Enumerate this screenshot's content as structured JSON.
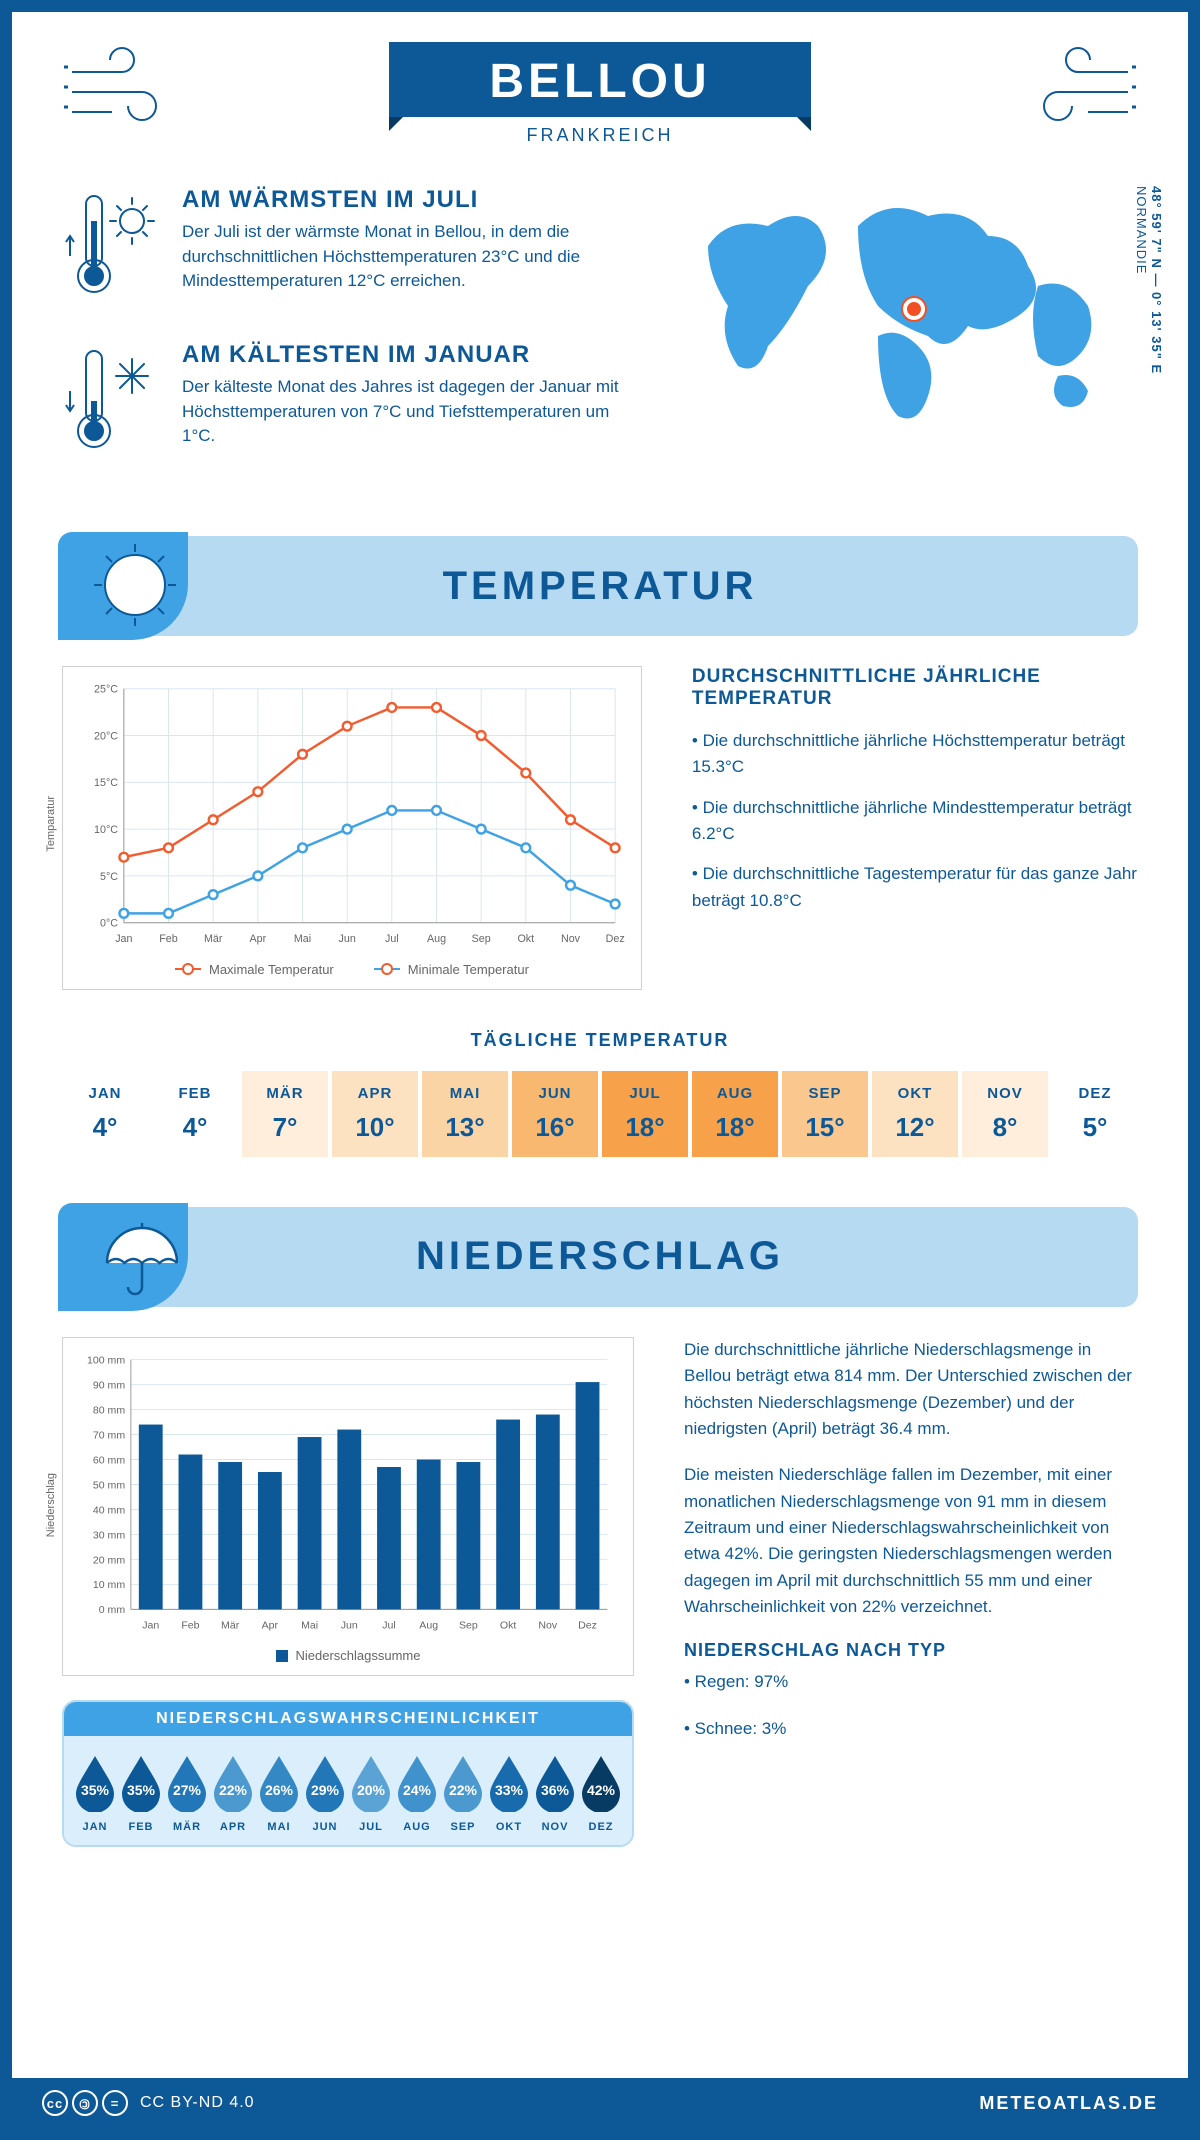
{
  "header": {
    "title": "BELLOU",
    "subtitle": "FRANKREICH"
  },
  "intro": {
    "warm": {
      "heading": "AM WÄRMSTEN IM JULI",
      "text": "Der Juli ist der wärmste Monat in Bellou, in dem die durchschnittlichen Höchsttemperaturen 23°C und die Mindesttemperaturen 12°C erreichen."
    },
    "cold": {
      "heading": "AM KÄLTESTEN IM JANUAR",
      "text": "Der kälteste Monat des Jahres ist dagegen der Januar mit Höchsttemperaturen von 7°C und Tiefsttemperaturen um 1°C."
    },
    "coords_lat": "48° 59' 7\" N — 0° 13' 35\" E",
    "region": "NORMANDIE"
  },
  "temp_section": {
    "title": "TEMPERATUR",
    "chart": {
      "type": "line",
      "months": [
        "Jan",
        "Feb",
        "Mär",
        "Apr",
        "Mai",
        "Jun",
        "Jul",
        "Aug",
        "Sep",
        "Okt",
        "Nov",
        "Dez"
      ],
      "max_series": [
        7,
        8,
        11,
        14,
        18,
        21,
        23,
        23,
        20,
        16,
        11,
        8
      ],
      "min_series": [
        1,
        1,
        3,
        5,
        8,
        10,
        12,
        12,
        10,
        8,
        4,
        2
      ],
      "ylim": [
        0,
        25
      ],
      "ytick_step": 5,
      "max_color": "#f25c2e",
      "min_color": "#3ea2e5",
      "grid_color": "#d9e6f0",
      "y_label": "Temparatur",
      "legend_max": "Maximale Temperatur",
      "legend_min": "Minimale Temperatur"
    },
    "aside": {
      "heading": "DURCHSCHNITTLICHE JÄHRLICHE TEMPERATUR",
      "b1": "• Die durchschnittliche jährliche Höchsttemperatur beträgt 15.3°C",
      "b2": "• Die durchschnittliche jährliche Mindesttemperatur beträgt 6.2°C",
      "b3": "• Die durchschnittliche Tagestemperatur für das ganze Jahr beträgt 10.8°C"
    },
    "daily": {
      "title": "TÄGLICHE TEMPERATUR",
      "months": [
        "JAN",
        "FEB",
        "MÄR",
        "APR",
        "MAI",
        "JUN",
        "JUL",
        "AUG",
        "SEP",
        "OKT",
        "NOV",
        "DEZ"
      ],
      "values": [
        "4°",
        "4°",
        "7°",
        "10°",
        "13°",
        "16°",
        "18°",
        "18°",
        "15°",
        "12°",
        "8°",
        "5°"
      ],
      "colors": [
        "#ffffff",
        "#ffffff",
        "#feeedb",
        "#fde2c2",
        "#fbd4a6",
        "#f9b870",
        "#f7a24a",
        "#f7a24a",
        "#fac88f",
        "#fde2c2",
        "#feeedb",
        "#ffffff"
      ]
    }
  },
  "precip_section": {
    "title": "NIEDERSCHLAG",
    "chart": {
      "type": "bar",
      "months": [
        "Jan",
        "Feb",
        "Mär",
        "Apr",
        "Mai",
        "Jun",
        "Jul",
        "Aug",
        "Sep",
        "Okt",
        "Nov",
        "Dez"
      ],
      "values": [
        74,
        62,
        59,
        55,
        69,
        72,
        57,
        60,
        59,
        76,
        78,
        91
      ],
      "ylim": [
        0,
        100
      ],
      "ytick_step": 10,
      "bar_color": "#0d5896",
      "grid_color": "#d9e6f0",
      "y_label": "Niederschlag",
      "legend": "Niederschlagssumme"
    },
    "text1": "Die durchschnittliche jährliche Niederschlagsmenge in Bellou beträgt etwa 814 mm. Der Unterschied zwischen der höchsten Niederschlagsmenge (Dezember) und der niedrigsten (April) beträgt 36.4 mm.",
    "text2": "Die meisten Niederschläge fallen im Dezember, mit einer monatlichen Niederschlagsmenge von 91 mm in diesem Zeitraum und einer Niederschlagswahrscheinlichkeit von etwa 42%. Die geringsten Niederschlagsmengen werden dagegen im April mit durchschnittlich 55 mm und einer Wahrscheinlichkeit von 22% verzeichnet.",
    "by_type_heading": "NIEDERSCHLAG NACH TYP",
    "by_type_1": "• Regen: 97%",
    "by_type_2": "• Schnee: 3%",
    "prob": {
      "title": "NIEDERSCHLAGSWAHRSCHEINLICHKEIT",
      "months": [
        "JAN",
        "FEB",
        "MÄR",
        "APR",
        "MAI",
        "JUN",
        "JUL",
        "AUG",
        "SEP",
        "OKT",
        "NOV",
        "DEZ"
      ],
      "pct": [
        "35%",
        "35%",
        "27%",
        "22%",
        "26%",
        "29%",
        "20%",
        "24%",
        "22%",
        "33%",
        "36%",
        "42%"
      ],
      "colors": [
        "#0d5896",
        "#0d5896",
        "#2277b8",
        "#4b99cf",
        "#3489c5",
        "#2277b8",
        "#5aa3d4",
        "#3f92cb",
        "#4b99cf",
        "#186bac",
        "#0d5896",
        "#073b63"
      ]
    }
  },
  "footer": {
    "license": "CC BY-ND 4.0",
    "site": "METEOATLAS.DE"
  },
  "colors": {
    "brand": "#0d5896",
    "accent": "#3ea2e5",
    "pale": "#b6daf2"
  }
}
